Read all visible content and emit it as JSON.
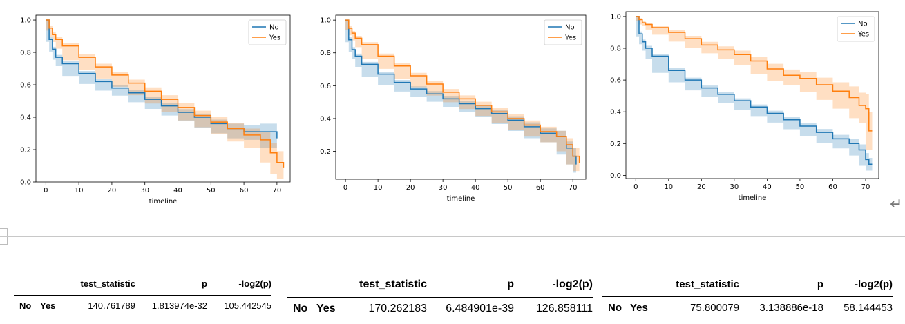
{
  "charts": [
    {
      "type": "line",
      "chart_type": "step line (Kaplan-Meier survival curves with confidence bands)",
      "xlabel": "timeline",
      "xlim": [
        -3,
        74
      ],
      "ylim": [
        0,
        1.03
      ],
      "xticks": [
        0,
        10,
        20,
        30,
        40,
        50,
        60,
        70
      ],
      "yticks": [
        0.0,
        0.2,
        0.4,
        0.6,
        0.8,
        1.0
      ],
      "ytick_labels": [
        "0.0",
        "0.2",
        "0.4",
        "0.6",
        "0.8",
        "1.0"
      ],
      "legend": {
        "placement": "top-right",
        "entries": [
          "No",
          "Yes"
        ]
      },
      "grid": false,
      "series": [
        {
          "name": "No",
          "color": "#1f77b4",
          "x": [
            0,
            1,
            2,
            3,
            5,
            10,
            15,
            20,
            25,
            30,
            35,
            40,
            45,
            50,
            55,
            60,
            65,
            70
          ],
          "y": [
            1.0,
            0.88,
            0.82,
            0.77,
            0.73,
            0.67,
            0.62,
            0.58,
            0.55,
            0.51,
            0.47,
            0.43,
            0.4,
            0.36,
            0.33,
            0.31,
            0.31,
            0.27
          ],
          "ci_width": [
            0,
            0.015,
            0.015,
            0.015,
            0.015,
            0.015,
            0.015,
            0.016,
            0.017,
            0.018,
            0.019,
            0.02,
            0.022,
            0.025,
            0.03,
            0.04,
            0.05,
            0.06
          ]
        },
        {
          "name": "Yes",
          "color": "#ff7f0e",
          "x": [
            0,
            1,
            2,
            3,
            5,
            10,
            15,
            20,
            25,
            30,
            35,
            40,
            45,
            50,
            55,
            60,
            65,
            68,
            70,
            72
          ],
          "y": [
            1.0,
            0.95,
            0.91,
            0.88,
            0.84,
            0.77,
            0.71,
            0.66,
            0.61,
            0.56,
            0.51,
            0.46,
            0.41,
            0.37,
            0.33,
            0.29,
            0.26,
            0.18,
            0.12,
            0.09
          ],
          "ci_width": [
            0,
            0.015,
            0.015,
            0.016,
            0.017,
            0.018,
            0.02,
            0.021,
            0.022,
            0.024,
            0.026,
            0.028,
            0.03,
            0.032,
            0.035,
            0.04,
            0.05,
            0.06,
            0.07,
            0.07
          ]
        }
      ]
    },
    {
      "type": "line",
      "chart_type": "step line (Kaplan-Meier survival curves with confidence bands)",
      "xlabel": "timeline",
      "xlim": [
        -3,
        74
      ],
      "ylim": [
        0.03,
        1.03
      ],
      "xticks": [
        0,
        10,
        20,
        30,
        40,
        50,
        60,
        70
      ],
      "yticks": [
        0.2,
        0.4,
        0.6,
        0.8,
        1.0
      ],
      "ytick_labels": [
        "0.2",
        "0.4",
        "0.6",
        "0.8",
        "1.0"
      ],
      "legend": {
        "placement": "top-right",
        "entries": [
          "No",
          "Yes"
        ]
      },
      "grid": false,
      "series": [
        {
          "name": "No",
          "color": "#1f77b4",
          "x": [
            0,
            1,
            2,
            3,
            5,
            10,
            15,
            20,
            25,
            30,
            35,
            40,
            45,
            50,
            55,
            60,
            65,
            68,
            70,
            71
          ],
          "y": [
            1.0,
            0.88,
            0.82,
            0.78,
            0.73,
            0.67,
            0.62,
            0.58,
            0.55,
            0.52,
            0.49,
            0.46,
            0.43,
            0.39,
            0.35,
            0.31,
            0.29,
            0.22,
            0.17,
            0.12
          ],
          "ci_width": [
            0,
            0.015,
            0.015,
            0.015,
            0.015,
            0.015,
            0.015,
            0.016,
            0.017,
            0.018,
            0.019,
            0.02,
            0.022,
            0.024,
            0.026,
            0.03,
            0.035,
            0.04,
            0.05,
            0.05
          ]
        },
        {
          "name": "Yes",
          "color": "#ff7f0e",
          "x": [
            0,
            1,
            2,
            3,
            5,
            10,
            15,
            20,
            25,
            30,
            35,
            40,
            45,
            50,
            55,
            60,
            65,
            68,
            70,
            72
          ],
          "y": [
            1.0,
            0.95,
            0.92,
            0.89,
            0.85,
            0.78,
            0.72,
            0.66,
            0.61,
            0.56,
            0.52,
            0.48,
            0.44,
            0.4,
            0.36,
            0.32,
            0.29,
            0.24,
            0.17,
            0.13
          ],
          "ci_width": [
            0,
            0.012,
            0.013,
            0.014,
            0.015,
            0.016,
            0.017,
            0.018,
            0.019,
            0.02,
            0.021,
            0.022,
            0.024,
            0.026,
            0.028,
            0.03,
            0.035,
            0.04,
            0.05,
            0.05
          ]
        }
      ]
    },
    {
      "type": "line",
      "chart_type": "step line (Kaplan-Meier survival curves with confidence bands)",
      "xlabel": "timeline",
      "xlim": [
        -3,
        74
      ],
      "ylim": [
        -0.02,
        1.03
      ],
      "xticks": [
        0,
        10,
        20,
        30,
        40,
        50,
        60,
        70
      ],
      "yticks": [
        0.0,
        0.2,
        0.4,
        0.6,
        0.8,
        1.0
      ],
      "ytick_labels": [
        "0.0",
        "0.2",
        "0.4",
        "0.6",
        "0.8",
        "1.0"
      ],
      "legend": {
        "placement": "top-right",
        "entries": [
          "No",
          "Yes"
        ]
      },
      "grid": false,
      "series": [
        {
          "name": "No",
          "color": "#1f77b4",
          "x": [
            0,
            1,
            2,
            3,
            5,
            10,
            15,
            20,
            25,
            30,
            35,
            40,
            45,
            50,
            55,
            60,
            65,
            68,
            70,
            71,
            72
          ],
          "y": [
            1.0,
            0.89,
            0.84,
            0.8,
            0.75,
            0.66,
            0.6,
            0.55,
            0.51,
            0.47,
            0.43,
            0.39,
            0.35,
            0.31,
            0.27,
            0.23,
            0.2,
            0.16,
            0.1,
            0.07,
            0.07
          ],
          "ci_width": [
            0,
            0.015,
            0.015,
            0.015,
            0.015,
            0.015,
            0.015,
            0.015,
            0.015,
            0.015,
            0.016,
            0.017,
            0.018,
            0.02,
            0.022,
            0.025,
            0.03,
            0.035,
            0.04,
            0.04,
            0.04
          ]
        },
        {
          "name": "Yes",
          "color": "#ff7f0e",
          "x": [
            0,
            1,
            2,
            3,
            5,
            10,
            15,
            20,
            25,
            30,
            35,
            40,
            45,
            50,
            55,
            60,
            65,
            68,
            70,
            71,
            72
          ],
          "y": [
            1.0,
            0.98,
            0.96,
            0.95,
            0.93,
            0.9,
            0.86,
            0.82,
            0.79,
            0.76,
            0.72,
            0.67,
            0.63,
            0.61,
            0.57,
            0.53,
            0.49,
            0.44,
            0.42,
            0.28,
            0.28
          ],
          "ci_width": [
            0,
            0.01,
            0.01,
            0.01,
            0.012,
            0.015,
            0.018,
            0.02,
            0.022,
            0.025,
            0.028,
            0.032,
            0.036,
            0.04,
            0.045,
            0.055,
            0.07,
            0.08,
            0.09,
            0.12,
            0.12
          ]
        }
      ]
    }
  ],
  "chart_data": [
    {
      "type": "table",
      "columns": [
        "test_statistic",
        "p",
        "-log2(p)"
      ],
      "rows": [
        {
          "index": [
            "No",
            "Yes"
          ],
          "values": [
            "140.761789",
            "1.813974e-32",
            "105.442545"
          ]
        }
      ]
    },
    {
      "type": "table",
      "columns": [
        "test_statistic",
        "p",
        "-log2(p)"
      ],
      "rows": [
        {
          "index": [
            "No",
            "Yes"
          ],
          "values": [
            "170.262183",
            "6.484901e-39",
            "126.858111"
          ]
        }
      ]
    },
    {
      "type": "table",
      "columns": [
        "test_statistic",
        "p",
        "-log2(p)"
      ],
      "rows": [
        {
          "index": [
            "No",
            "Yes"
          ],
          "values": [
            "75.800079",
            "3.138886e-18",
            "58.144453"
          ]
        }
      ]
    }
  ],
  "page": {
    "return_symbol": "↵"
  }
}
